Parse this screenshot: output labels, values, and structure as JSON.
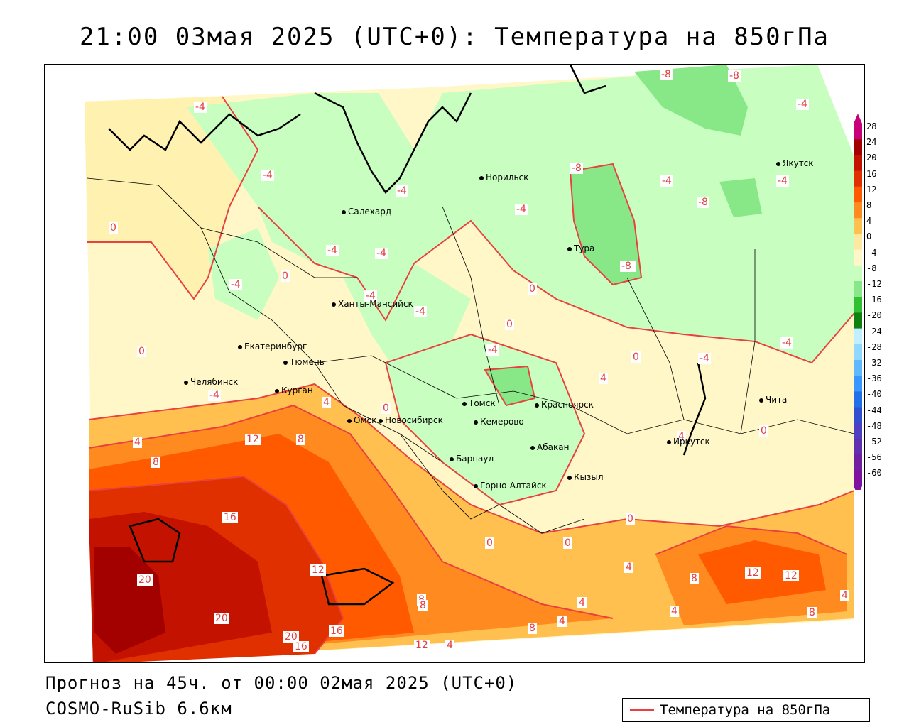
{
  "title": "21:00 03мая 2025 (UTC+0): Температура на 850гПа",
  "footer": {
    "forecast": "Прогноз на 45ч. от 00:00 02мая 2025 (UTC+0)",
    "model": "COSMO-RuSib 6.6км"
  },
  "legend": {
    "label": "Температура на 850гПа",
    "color": "#e8413f"
  },
  "colorbar": {
    "ticks": [
      "28",
      "24",
      "20",
      "16",
      "12",
      "8",
      "4",
      "0",
      "-4",
      "-8",
      "-12",
      "-16",
      "-20",
      "-24",
      "-28",
      "-32",
      "-36",
      "-40",
      "-44",
      "-48",
      "-52",
      "-56",
      "-60"
    ],
    "colors": [
      "#c8007a",
      "#a30000",
      "#c41200",
      "#e03000",
      "#ff5a00",
      "#ff8a20",
      "#ffc050",
      "#ffe9a0",
      "#fff7c8",
      "#c8ffc0",
      "#88e888",
      "#30c030",
      "#108010",
      "#c0f0ff",
      "#90d8ff",
      "#60b8ff",
      "#3898ff",
      "#2070e8",
      "#3050d0",
      "#5040c0",
      "#6030b0",
      "#7020a0",
      "#8010a0"
    ]
  },
  "cities": [
    {
      "name": "Норильск"
    },
    {
      "name": "Якутск"
    },
    {
      "name": "Салехард"
    },
    {
      "name": "Тура"
    },
    {
      "name": "Ханты-Мансийск"
    },
    {
      "name": "Екатеринбург"
    },
    {
      "name": "Тюмень"
    },
    {
      "name": "Челябинск"
    },
    {
      "name": "Курган"
    },
    {
      "name": "Омск"
    },
    {
      "name": "Новосибирск"
    },
    {
      "name": "Томск"
    },
    {
      "name": "Кемерово"
    },
    {
      "name": "Красноярск"
    },
    {
      "name": "Абакан"
    },
    {
      "name": "Барнаул"
    },
    {
      "name": "Горно-Алтайск"
    },
    {
      "name": "Кызыл"
    },
    {
      "name": "Иркутск"
    },
    {
      "name": "Чита"
    }
  ],
  "contour_labels": [
    "-4",
    "-8",
    "-8",
    "-4",
    "-4",
    "-8",
    "-4",
    "-4",
    "-8",
    "-4",
    "-8",
    "0",
    "-4",
    "-4",
    "-4",
    "-4",
    "-4",
    "0",
    "-4",
    "0",
    "-8",
    "0",
    "-4",
    "-4",
    "-4",
    "0",
    "0",
    "-4",
    "4",
    "0",
    "0",
    "4",
    "4",
    "12",
    "8",
    "4",
    "8",
    "16",
    "12",
    "8",
    "20",
    "20",
    "20",
    "16",
    "16",
    "12",
    "8",
    "4",
    "8",
    "4",
    "4",
    "4",
    "0",
    "0",
    "4",
    "8",
    "12",
    "12",
    "8",
    "4",
    "0"
  ]
}
